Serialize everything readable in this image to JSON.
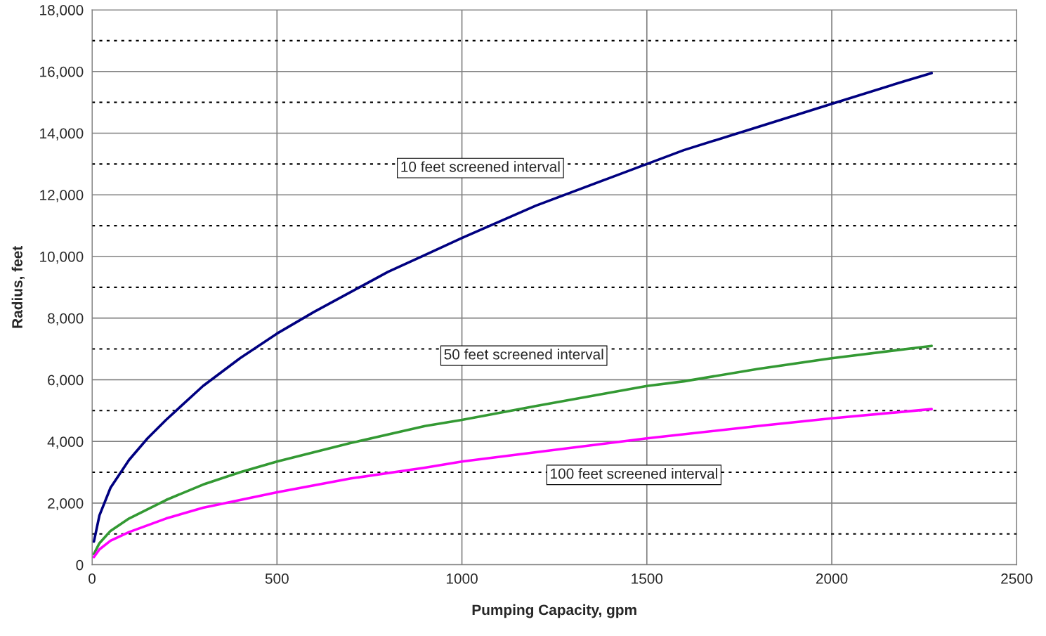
{
  "chart_data": {
    "type": "line",
    "xlabel": "Pumping Capacity, gpm",
    "ylabel": "Radius, feet",
    "xlim": [
      0,
      2500
    ],
    "xticks": [
      0,
      500,
      1000,
      1500,
      2000,
      2500
    ],
    "ylim": [
      0,
      18000
    ],
    "yticks": [
      0,
      {
        "value": 1000,
        "label": null
      },
      {
        "value": 2000,
        "label": "2,000"
      },
      {
        "value": 3000,
        "label": null
      },
      {
        "value": 4000,
        "label": "4,000"
      },
      {
        "value": 5000,
        "label": null
      },
      {
        "value": 6000,
        "label": "6,000"
      },
      {
        "value": 7000,
        "label": null
      },
      {
        "value": 8000,
        "label": "8,000"
      },
      {
        "value": 9000,
        "label": null
      },
      {
        "value": 10000,
        "label": "10,000"
      },
      {
        "value": 11000,
        "label": null
      },
      {
        "value": 12000,
        "label": "12,000"
      },
      {
        "value": 13000,
        "label": null
      },
      {
        "value": 14000,
        "label": "14,000"
      },
      {
        "value": 15000,
        "label": null
      },
      {
        "value": 16000,
        "label": "16,000"
      },
      {
        "value": 17000,
        "label": null
      },
      {
        "value": 18000,
        "label": "18,000"
      }
    ],
    "grid": true,
    "legend": false,
    "marker": "none",
    "line_style": "solid",
    "series": [
      {
        "name": "10 feet screened interval",
        "color": "#000080",
        "x": [
          5,
          20,
          50,
          100,
          150,
          200,
          300,
          400,
          500,
          600,
          700,
          800,
          900,
          1000,
          1200,
          1400,
          1500,
          1600,
          1800,
          2000,
          2200,
          2270
        ],
        "values": [
          750,
          1600,
          2500,
          3400,
          4100,
          4700,
          5800,
          6700,
          7500,
          8200,
          8850,
          9500,
          10050,
          10600,
          11650,
          12550,
          13000,
          13450,
          14200,
          14950,
          15700,
          15950
        ]
      },
      {
        "name": "50 feet screened interval",
        "color": "#339933",
        "x": [
          5,
          20,
          50,
          100,
          200,
          300,
          400,
          500,
          700,
          900,
          1000,
          1200,
          1500,
          1600,
          1800,
          2000,
          2270
        ],
        "values": [
          350,
          700,
          1100,
          1500,
          2100,
          2600,
          3000,
          3350,
          3950,
          4500,
          4700,
          5150,
          5800,
          5950,
          6350,
          6700,
          7100
        ]
      },
      {
        "name": "100 feet screened interval",
        "color": "#ff00ff",
        "x": [
          5,
          20,
          50,
          100,
          200,
          300,
          400,
          500,
          700,
          900,
          1000,
          1200,
          1500,
          1800,
          2000,
          2270
        ],
        "values": [
          250,
          500,
          780,
          1060,
          1500,
          1850,
          2100,
          2350,
          2800,
          3150,
          3350,
          3650,
          4100,
          4500,
          4750,
          5050
        ]
      }
    ]
  }
}
